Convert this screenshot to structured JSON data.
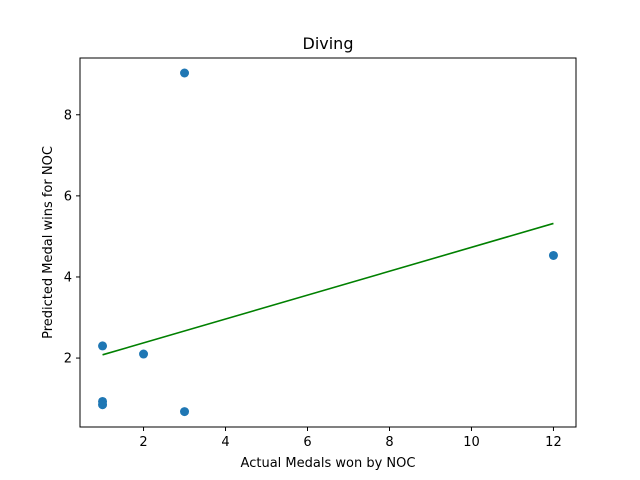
{
  "chart_data": {
    "type": "scatter",
    "title": "Diving",
    "xlabel": "Actual Medals won by NOC",
    "ylabel": "Predicted Medal wins for NOC",
    "xlim": [
      0.45,
      12.55
    ],
    "ylim": [
      0.3,
      9.4
    ],
    "xticks": [
      2,
      4,
      6,
      8,
      10,
      12
    ],
    "yticks": [
      2,
      4,
      6,
      8
    ],
    "grid": false,
    "point_color": "#1f77b4",
    "line_color": "#008000",
    "points": [
      {
        "x": 1,
        "y": 2.3
      },
      {
        "x": 1,
        "y": 0.93
      },
      {
        "x": 1,
        "y": 0.85
      },
      {
        "x": 2,
        "y": 2.1
      },
      {
        "x": 3,
        "y": 9.03
      },
      {
        "x": 3,
        "y": 0.68
      },
      {
        "x": 12,
        "y": 4.53
      }
    ],
    "fit_line": {
      "x": [
        1,
        12
      ],
      "y": [
        2.08,
        5.32
      ]
    }
  }
}
